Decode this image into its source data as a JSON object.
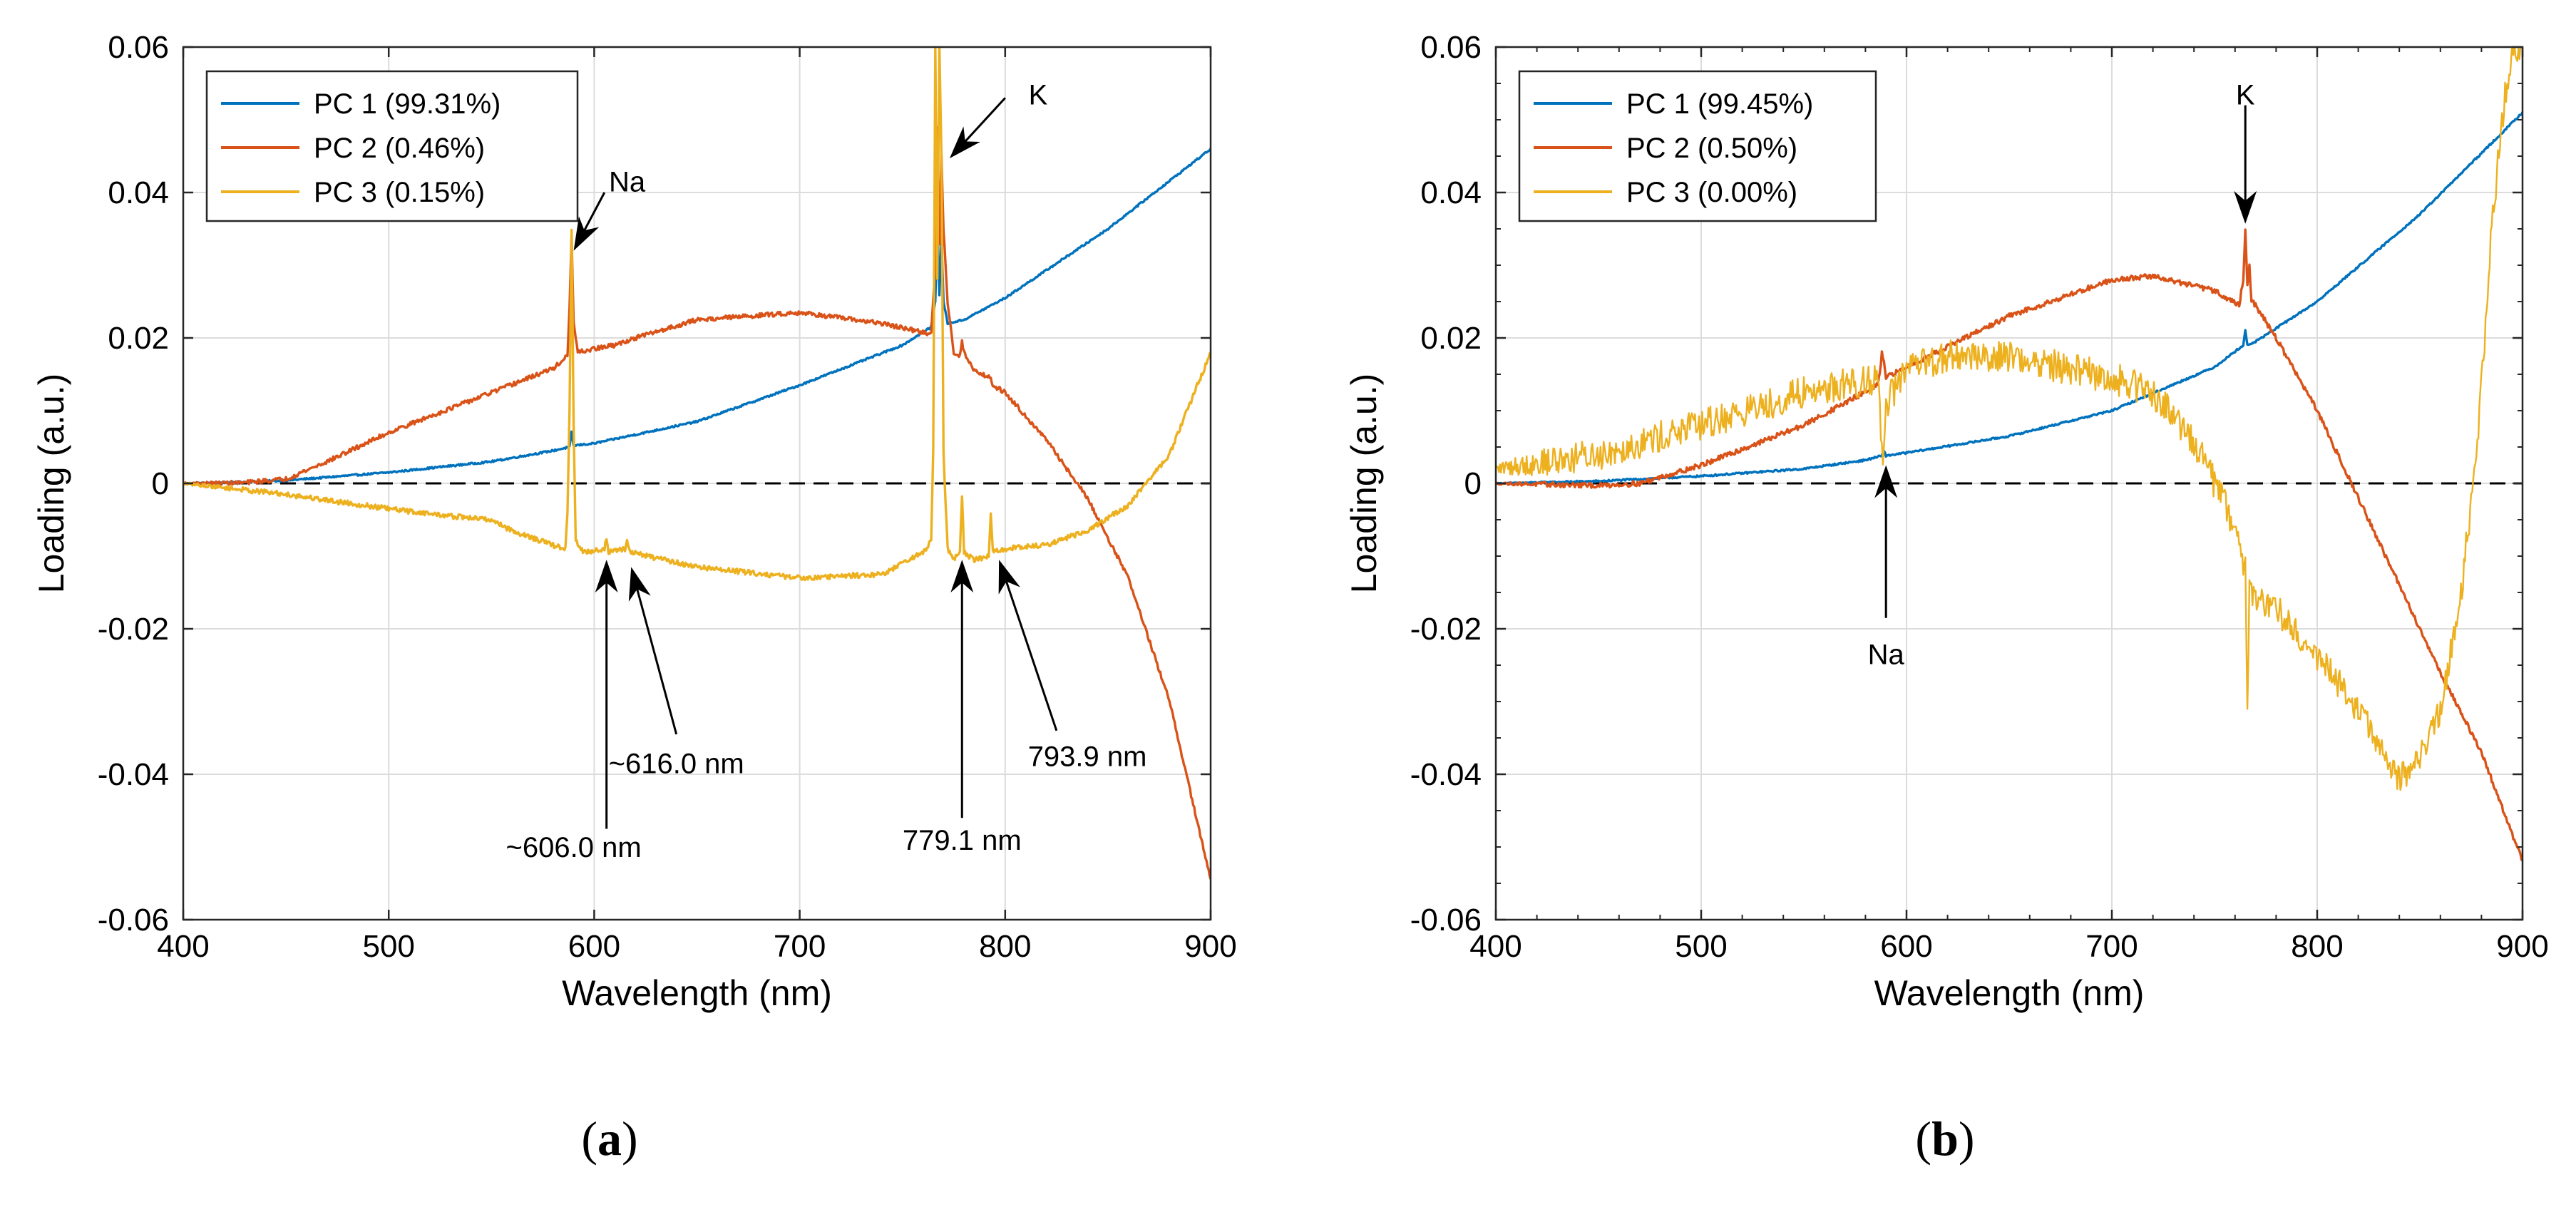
{
  "chart_data": [
    {
      "id": "a",
      "type": "line",
      "panel_label": "(a)",
      "panel_letter": "a",
      "xlabel": "Wavelength (nm)",
      "ylabel": "Loading (a.u.)",
      "xlim": [
        400,
        900
      ],
      "ylim": [
        -0.06,
        0.06
      ],
      "xticks": [
        400,
        500,
        600,
        700,
        800,
        900
      ],
      "xtick_labels": [
        "400",
        "500",
        "600",
        "700",
        "800",
        "900"
      ],
      "yticks": [
        -0.06,
        -0.04,
        -0.02,
        0,
        0.02,
        0.04,
        0.06
      ],
      "ytick_labels": [
        "-0.06",
        "-0.04",
        "-0.02",
        "0",
        "0.02",
        "0.04",
        "0.06"
      ],
      "grid": true,
      "legend_position": "top-left",
      "zero_line": "dashed",
      "series": [
        {
          "name": "PC 1 (99.31%)",
          "color": "#0072BD",
          "noise": 0.00012,
          "points": [
            [
              400,
              0
            ],
            [
              420,
              0.0001
            ],
            [
              450,
              0.0004
            ],
            [
              500,
              0.0015
            ],
            [
              550,
              0.003
            ],
            [
              580,
              0.0045
            ],
            [
              588,
              0.005
            ],
            [
              589,
              0.007
            ],
            [
              590,
              0.0052
            ],
            [
              600,
              0.0055
            ],
            [
              650,
              0.0085
            ],
            [
              700,
              0.0135
            ],
            [
              750,
              0.019
            ],
            [
              764,
              0.0215
            ],
            [
              766,
              0.025
            ],
            [
              767,
              0.0365
            ],
            [
              768,
              0.026
            ],
            [
              769,
              0.0335
            ],
            [
              770,
              0.025
            ],
            [
              772,
              0.022
            ],
            [
              780,
              0.0225
            ],
            [
              800,
              0.0255
            ],
            [
              850,
              0.035
            ],
            [
              900,
              0.046
            ]
          ]
        },
        {
          "name": "PC 2 (0.46%)",
          "color": "#D95319",
          "noise": 0.0003,
          "points": [
            [
              400,
              0
            ],
            [
              430,
              0.0001
            ],
            [
              450,
              0.0006
            ],
            [
              470,
              0.003
            ],
            [
              500,
              0.007
            ],
            [
              550,
              0.0125
            ],
            [
              580,
              0.0158
            ],
            [
              587,
              0.0175
            ],
            [
              588,
              0.024
            ],
            [
              589,
              0.034
            ],
            [
              590,
              0.022
            ],
            [
              592,
              0.018
            ],
            [
              600,
              0.0185
            ],
            [
              610,
              0.019
            ],
            [
              620,
              0.02
            ],
            [
              650,
              0.0225
            ],
            [
              700,
              0.0235
            ],
            [
              740,
              0.022
            ],
            [
              764,
              0.0205
            ],
            [
              766,
              0.03
            ],
            [
              767,
              0.049
            ],
            [
              768,
              0.033
            ],
            [
              769,
              0.045
            ],
            [
              770,
              0.035
            ],
            [
              772,
              0.025
            ],
            [
              775,
              0.018
            ],
            [
              778,
              0.0175
            ],
            [
              779,
              0.0195
            ],
            [
              780,
              0.018
            ],
            [
              785,
              0.0155
            ],
            [
              793,
              0.0145
            ],
            [
              794,
              0.0135
            ],
            [
              800,
              0.0125
            ],
            [
              820,
              0.006
            ],
            [
              840,
              -0.002
            ],
            [
              860,
              -0.013
            ],
            [
              880,
              -0.03
            ],
            [
              900,
              -0.0545
            ]
          ]
        },
        {
          "name": "PC 3 (0.15%)",
          "color": "#EDB120",
          "noise": 0.00035,
          "points": [
            [
              400,
              0
            ],
            [
              450,
              -0.0015
            ],
            [
              500,
              -0.0035
            ],
            [
              530,
              -0.0045
            ],
            [
              550,
              -0.005
            ],
            [
              560,
              -0.0065
            ],
            [
              580,
              -0.0085
            ],
            [
              586,
              -0.009
            ],
            [
              587,
              -0.004
            ],
            [
              588,
              0.01
            ],
            [
              589,
              0.035
            ],
            [
              590,
              0.008
            ],
            [
              591,
              -0.008
            ],
            [
              595,
              -0.0095
            ],
            [
              605,
              -0.009
            ],
            [
              606,
              -0.0075
            ],
            [
              607,
              -0.0095
            ],
            [
              615,
              -0.009
            ],
            [
              616,
              -0.008
            ],
            [
              618,
              -0.0095
            ],
            [
              650,
              -0.0115
            ],
            [
              700,
              -0.013
            ],
            [
              740,
              -0.0125
            ],
            [
              760,
              -0.0095
            ],
            [
              764,
              -0.008
            ],
            [
              765,
              0.005
            ],
            [
              766,
              0.06
            ],
            [
              767,
              0.028
            ],
            [
              768,
              0.06
            ],
            [
              769,
              0.045
            ],
            [
              770,
              0.004
            ],
            [
              772,
              -0.009
            ],
            [
              775,
              -0.0105
            ],
            [
              778,
              -0.0095
            ],
            [
              779,
              -0.0015
            ],
            [
              780,
              -0.0095
            ],
            [
              785,
              -0.0105
            ],
            [
              792,
              -0.01
            ],
            [
              793,
              -0.004
            ],
            [
              794,
              -0.0095
            ],
            [
              800,
              -0.009
            ],
            [
              820,
              -0.0085
            ],
            [
              840,
              -0.0065
            ],
            [
              860,
              -0.003
            ],
            [
              880,
              0.004
            ],
            [
              900,
              0.018
            ]
          ]
        }
      ],
      "annotations": [
        {
          "text": "Na",
          "tail_x": 605,
          "tail_y": 0.04,
          "head_x": 590,
          "head_y": 0.032,
          "label_x": 616,
          "label_y": 0.0415
        },
        {
          "text": "K",
          "tail_x": 800,
          "tail_y": 0.053,
          "head_x": 773,
          "head_y": 0.0447,
          "label_x": 816,
          "label_y": 0.0535
        },
        {
          "text": "~606.0 nm",
          "tail_x": 606,
          "tail_y": -0.0475,
          "head_x": 606,
          "head_y": -0.0105,
          "label_x": 590,
          "label_y": -0.05
        },
        {
          "text": "~616.0 nm",
          "tail_x": 640,
          "tail_y": -0.0345,
          "head_x": 618,
          "head_y": -0.0115,
          "label_x": 640,
          "label_y": -0.0385
        },
        {
          "text": "779.1 nm",
          "tail_x": 779,
          "tail_y": -0.046,
          "head_x": 779,
          "head_y": -0.0105,
          "label_x": 779,
          "label_y": -0.049
        },
        {
          "text": "793.9 nm",
          "tail_x": 825,
          "tail_y": -0.034,
          "head_x": 797,
          "head_y": -0.0105,
          "label_x": 840,
          "label_y": -0.0375
        }
      ]
    },
    {
      "id": "b",
      "type": "line",
      "panel_label": "(b)",
      "panel_letter": "b",
      "xlabel": "Wavelength (nm)",
      "ylabel": "Loading (a.u.)",
      "xlim": [
        400,
        900
      ],
      "ylim": [
        -0.06,
        0.06
      ],
      "xticks": [
        400,
        500,
        600,
        700,
        800,
        900
      ],
      "xtick_labels": [
        "400",
        "500",
        "600",
        "700",
        "800",
        "900"
      ],
      "yticks": [
        -0.06,
        -0.04,
        -0.02,
        0,
        0.02,
        0.04,
        0.06
      ],
      "ytick_labels": [
        "-0.06",
        "-0.04",
        "-0.02",
        "0",
        "0.02",
        "0.04",
        "0.06"
      ],
      "grid": true,
      "legend_position": "top-left",
      "zero_line": "dashed",
      "series": [
        {
          "name": "PC 1 (99.45%)",
          "color": "#0072BD",
          "noise": 0.00012,
          "points": [
            [
              400,
              0
            ],
            [
              450,
              0.0003
            ],
            [
              500,
              0.001
            ],
            [
              550,
              0.002
            ],
            [
              580,
              0.0032
            ],
            [
              588,
              0.0038
            ],
            [
              589,
              0.0045
            ],
            [
              590,
              0.0038
            ],
            [
              600,
              0.0042
            ],
            [
              650,
              0.0065
            ],
            [
              700,
              0.01
            ],
            [
              750,
              0.016
            ],
            [
              764,
              0.019
            ],
            [
              765,
              0.021
            ],
            [
              766,
              0.019
            ],
            [
              770,
              0.0195
            ],
            [
              800,
              0.025
            ],
            [
              850,
              0.037
            ],
            [
              900,
              0.051
            ]
          ]
        },
        {
          "name": "PC 2 (0.50%)",
          "color": "#D95319",
          "noise": 0.00035,
          "points": [
            [
              400,
              0
            ],
            [
              450,
              -0.0003
            ],
            [
              470,
              0
            ],
            [
              500,
              0.0025
            ],
            [
              550,
              0.008
            ],
            [
              586,
              0.0135
            ],
            [
              587,
              0.015
            ],
            [
              588,
              0.018
            ],
            [
              589,
              0.0165
            ],
            [
              590,
              0.0145
            ],
            [
              600,
              0.016
            ],
            [
              650,
              0.023
            ],
            [
              700,
              0.028
            ],
            [
              720,
              0.0285
            ],
            [
              750,
              0.0265
            ],
            [
              762,
              0.0245
            ],
            [
              764,
              0.028
            ],
            [
              765,
              0.035
            ],
            [
              766,
              0.027
            ],
            [
              767,
              0.03
            ],
            [
              768,
              0.025
            ],
            [
              770,
              0.0245
            ],
            [
              780,
              0.02
            ],
            [
              800,
              0.01
            ],
            [
              820,
              -0.002
            ],
            [
              840,
              -0.014
            ],
            [
              860,
              -0.026
            ],
            [
              880,
              -0.037
            ],
            [
              900,
              -0.052
            ]
          ]
        },
        {
          "name": "PC 3 (0.00%)",
          "color": "#EDB120",
          "noise": 0.0022,
          "points": [
            [
              400,
              0.002
            ],
            [
              450,
              0.004
            ],
            [
              500,
              0.008
            ],
            [
              550,
              0.0125
            ],
            [
              586,
              0.0145
            ],
            [
              587,
              0.01
            ],
            [
              588,
              0.005
            ],
            [
              589,
              0.0045
            ],
            [
              590,
              0.011
            ],
            [
              600,
              0.0155
            ],
            [
              620,
              0.0175
            ],
            [
              650,
              0.0175
            ],
            [
              700,
              0.0145
            ],
            [
              720,
              0.0125
            ],
            [
              740,
              0.006
            ],
            [
              760,
              -0.006
            ],
            [
              765,
              -0.012
            ],
            [
              766,
              -0.033
            ],
            [
              767,
              -0.015
            ],
            [
              780,
              -0.017
            ],
            [
              800,
              -0.024
            ],
            [
              820,
              -0.031
            ],
            [
              840,
              -0.041
            ],
            [
              850,
              -0.038
            ],
            [
              860,
              -0.031
            ],
            [
              870,
              -0.015
            ],
            [
              878,
              0.005
            ],
            [
              885,
              0.035
            ],
            [
              890,
              0.05
            ],
            [
              895,
              0.06
            ],
            [
              900,
              0.06
            ]
          ]
        }
      ],
      "annotations": [
        {
          "text": "K",
          "tail_x": 765,
          "tail_y": 0.052,
          "head_x": 765,
          "head_y": 0.0357,
          "label_x": 765,
          "label_y": 0.0535
        },
        {
          "text": "Na",
          "tail_x": 590,
          "tail_y": -0.0185,
          "head_x": 590,
          "head_y": 0.0025,
          "label_x": 590,
          "label_y": -0.0235
        }
      ]
    }
  ]
}
